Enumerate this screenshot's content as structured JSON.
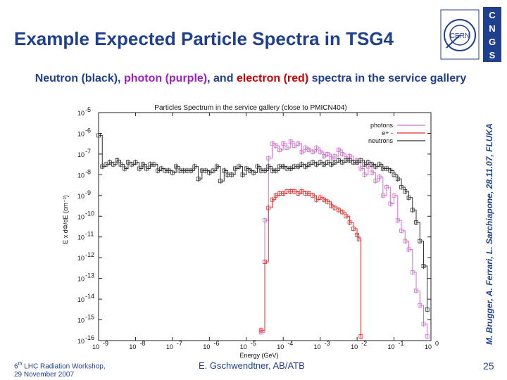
{
  "slide": {
    "title": "Example Expected Particle Spectra in TSG4",
    "subtitle_parts": {
      "p1": "Neutron (black), ",
      "p2": "photon (purple)",
      "p3": ", and ",
      "p4": "electron (red)",
      "p5": " spectra in the service gallery"
    },
    "credit": "M. Brugger, A. Ferrari, L. Sarchiapone, 28.11.07, FLUKA",
    "footer_workshop_prefix": "6",
    "footer_workshop_sup": "th",
    "footer_workshop_rest": " LHC Radiation Workshop,",
    "footer_date": "29 November 2007",
    "footer_author": "E. Gschwendtner, AB/ATB",
    "page_number": "25"
  },
  "logos": {
    "cern": "CERN",
    "cngs_letters": [
      "C",
      "N",
      "G",
      "S"
    ]
  },
  "chart_data": {
    "type": "line",
    "title": "Particles Spectrum in the service gallery (close to PMICN404)",
    "xlabel": "Energy (GeV)",
    "ylabel": "E x dΦ/dE  (cm⁻²)",
    "x_scale": "log",
    "y_scale": "log",
    "xlim": [
      1e-09,
      1
    ],
    "ylim": [
      1e-16,
      1e-05
    ],
    "x_ticks": [
      {
        "exp": -9,
        "label": "10",
        "sup": "-9"
      },
      {
        "exp": -8,
        "label": "10",
        "sup": "-8"
      },
      {
        "exp": -7,
        "label": "10",
        "sup": "-7"
      },
      {
        "exp": -6,
        "label": "10",
        "sup": "-6"
      },
      {
        "exp": -5,
        "label": "10",
        "sup": "-5"
      },
      {
        "exp": -4,
        "label": "10",
        "sup": "-4"
      },
      {
        "exp": -3,
        "label": "10",
        "sup": "-3"
      },
      {
        "exp": -2,
        "label": "10",
        "sup": "-2"
      },
      {
        "exp": -1,
        "label": "10",
        "sup": "-1"
      },
      {
        "exp": 0,
        "label": "10",
        "sup": "0"
      }
    ],
    "y_ticks": [
      {
        "exp": -5,
        "label": "10",
        "sup": "-5"
      },
      {
        "exp": -6,
        "label": "10",
        "sup": "-6"
      },
      {
        "exp": -7,
        "label": "10",
        "sup": "-7"
      },
      {
        "exp": -8,
        "label": "10",
        "sup": "-8"
      },
      {
        "exp": -9,
        "label": "10",
        "sup": "-9"
      },
      {
        "exp": -10,
        "label": "10",
        "sup": "-10"
      },
      {
        "exp": -11,
        "label": "10",
        "sup": "-11"
      },
      {
        "exp": -12,
        "label": "10",
        "sup": "-12"
      },
      {
        "exp": -13,
        "label": "10",
        "sup": "-13"
      },
      {
        "exp": -14,
        "label": "10",
        "sup": "-14"
      },
      {
        "exp": -15,
        "label": "10",
        "sup": "-15"
      },
      {
        "exp": -16,
        "label": "10",
        "sup": "-16"
      }
    ],
    "legend_position": "top-right",
    "series": [
      {
        "name": "photons",
        "legend": "photons",
        "color": "#d070d0",
        "points": [
          [
            -4.6,
            -15.6
          ],
          [
            -4.5,
            -10.2
          ],
          [
            -4.4,
            -7.2
          ],
          [
            -4.3,
            -6.5
          ],
          [
            -4.2,
            -6.6
          ],
          [
            -4.1,
            -6.8
          ],
          [
            -4.0,
            -6.5
          ],
          [
            -3.9,
            -6.7
          ],
          [
            -3.8,
            -6.4
          ],
          [
            -3.7,
            -6.6
          ],
          [
            -3.6,
            -6.5
          ],
          [
            -3.5,
            -6.9
          ],
          [
            -3.4,
            -6.7
          ],
          [
            -3.3,
            -6.8
          ],
          [
            -3.2,
            -6.9
          ],
          [
            -3.1,
            -6.7
          ],
          [
            -3.0,
            -6.9
          ],
          [
            -2.9,
            -7.1
          ],
          [
            -2.8,
            -7.0
          ],
          [
            -2.7,
            -7.2
          ],
          [
            -2.6,
            -7.1
          ],
          [
            -2.5,
            -6.8
          ],
          [
            -2.4,
            -7.0
          ],
          [
            -2.3,
            -7.2
          ],
          [
            -2.2,
            -7.1
          ],
          [
            -2.1,
            -7.4
          ],
          [
            -2.0,
            -7.3
          ],
          [
            -1.9,
            -7.7
          ],
          [
            -1.8,
            -8.0
          ],
          [
            -1.7,
            -7.6
          ],
          [
            -1.6,
            -7.9
          ],
          [
            -1.5,
            -8.3
          ],
          [
            -1.4,
            -8.1
          ],
          [
            -1.3,
            -9.0
          ],
          [
            -1.2,
            -8.6
          ],
          [
            -1.1,
            -9.4
          ],
          [
            -1.0,
            -9.0
          ],
          [
            -0.9,
            -10.2
          ],
          [
            -0.8,
            -10.7
          ],
          [
            -0.7,
            -11.2
          ],
          [
            -0.6,
            -11.6
          ],
          [
            -0.5,
            -12.7
          ],
          [
            -0.4,
            -13.6
          ],
          [
            -0.3,
            -14.3
          ],
          [
            -0.2,
            -15.2
          ],
          [
            -0.1,
            -15.8
          ]
        ]
      },
      {
        "name": "electrons",
        "legend": "e+ -",
        "color": "#e03030",
        "points": [
          [
            -4.6,
            -15.5
          ],
          [
            -4.5,
            -12.2
          ],
          [
            -4.4,
            -9.6
          ],
          [
            -4.3,
            -9.2
          ],
          [
            -4.2,
            -9.0
          ],
          [
            -4.1,
            -8.9
          ],
          [
            -4.0,
            -8.9
          ],
          [
            -3.9,
            -8.8
          ],
          [
            -3.8,
            -8.8
          ],
          [
            -3.7,
            -8.8
          ],
          [
            -3.6,
            -8.9
          ],
          [
            -3.5,
            -8.8
          ],
          [
            -3.4,
            -8.9
          ],
          [
            -3.3,
            -8.9
          ],
          [
            -3.2,
            -9.0
          ],
          [
            -3.1,
            -9.2
          ],
          [
            -3.0,
            -9.1
          ],
          [
            -2.9,
            -9.2
          ],
          [
            -2.8,
            -9.3
          ],
          [
            -2.7,
            -9.5
          ],
          [
            -2.6,
            -9.6
          ],
          [
            -2.5,
            -9.7
          ],
          [
            -2.4,
            -9.8
          ],
          [
            -2.3,
            -10.0
          ],
          [
            -2.2,
            -10.3
          ],
          [
            -2.1,
            -10.6
          ],
          [
            -2.0,
            -10.9
          ],
          [
            -1.95,
            -11.1
          ],
          [
            -1.9,
            -15.8
          ]
        ]
      },
      {
        "name": "neutrons",
        "legend": "neutrons",
        "color": "#303030",
        "points": [
          [
            -9.0,
            -6.1
          ],
          [
            -8.9,
            -7.6
          ],
          [
            -8.8,
            -7.5
          ],
          [
            -8.7,
            -7.4
          ],
          [
            -8.6,
            -7.5
          ],
          [
            -8.5,
            -7.3
          ],
          [
            -8.4,
            -7.5
          ],
          [
            -8.3,
            -7.7
          ],
          [
            -8.2,
            -7.4
          ],
          [
            -8.1,
            -7.5
          ],
          [
            -8.0,
            -7.4
          ],
          [
            -7.9,
            -7.7
          ],
          [
            -7.8,
            -7.5
          ],
          [
            -7.7,
            -7.7
          ],
          [
            -7.6,
            -7.5
          ],
          [
            -7.5,
            -7.5
          ],
          [
            -7.4,
            -7.8
          ],
          [
            -7.3,
            -7.7
          ],
          [
            -7.2,
            -7.8
          ],
          [
            -7.1,
            -7.8
          ],
          [
            -7.0,
            -7.9
          ],
          [
            -6.9,
            -7.6
          ],
          [
            -6.8,
            -7.8
          ],
          [
            -6.7,
            -7.8
          ],
          [
            -6.6,
            -7.8
          ],
          [
            -6.5,
            -7.8
          ],
          [
            -6.4,
            -7.6
          ],
          [
            -6.3,
            -8.2
          ],
          [
            -6.2,
            -7.8
          ],
          [
            -6.1,
            -7.8
          ],
          [
            -6.0,
            -7.9
          ],
          [
            -5.9,
            -7.8
          ],
          [
            -5.8,
            -7.6
          ],
          [
            -5.7,
            -8.3
          ],
          [
            -5.6,
            -7.8
          ],
          [
            -5.5,
            -8.0
          ],
          [
            -5.4,
            -8.0
          ],
          [
            -5.3,
            -7.7
          ],
          [
            -5.2,
            -7.6
          ],
          [
            -5.1,
            -8.0
          ],
          [
            -5.0,
            -7.7
          ],
          [
            -4.9,
            -7.8
          ],
          [
            -4.8,
            -7.9
          ],
          [
            -4.7,
            -7.6
          ],
          [
            -4.6,
            -7.8
          ],
          [
            -4.5,
            -7.8
          ],
          [
            -4.4,
            -7.6
          ],
          [
            -4.3,
            -7.8
          ],
          [
            -4.2,
            -7.8
          ],
          [
            -4.1,
            -7.6
          ],
          [
            -4.0,
            -7.6
          ],
          [
            -3.9,
            -7.7
          ],
          [
            -3.8,
            -7.7
          ],
          [
            -3.7,
            -7.6
          ],
          [
            -3.6,
            -7.6
          ],
          [
            -3.5,
            -7.5
          ],
          [
            -3.4,
            -7.6
          ],
          [
            -3.3,
            -7.5
          ],
          [
            -3.2,
            -7.4
          ],
          [
            -3.1,
            -7.5
          ],
          [
            -3.0,
            -7.4
          ],
          [
            -2.9,
            -7.5
          ],
          [
            -2.8,
            -7.4
          ],
          [
            -2.7,
            -7.5
          ],
          [
            -2.6,
            -7.4
          ],
          [
            -2.5,
            -7.3
          ],
          [
            -2.4,
            -7.4
          ],
          [
            -2.3,
            -7.3
          ],
          [
            -2.2,
            -7.3
          ],
          [
            -2.1,
            -7.4
          ],
          [
            -2.0,
            -7.4
          ],
          [
            -1.9,
            -7.3
          ],
          [
            -1.8,
            -7.5
          ],
          [
            -1.7,
            -7.4
          ],
          [
            -1.6,
            -7.5
          ],
          [
            -1.5,
            -7.6
          ],
          [
            -1.4,
            -7.5
          ],
          [
            -1.3,
            -7.7
          ],
          [
            -1.2,
            -7.7
          ],
          [
            -1.1,
            -7.8
          ],
          [
            -1.0,
            -8.0
          ],
          [
            -0.9,
            -8.2
          ],
          [
            -0.8,
            -8.6
          ],
          [
            -0.7,
            -8.8
          ],
          [
            -0.6,
            -9.1
          ],
          [
            -0.5,
            -9.7
          ],
          [
            -0.4,
            -10.3
          ],
          [
            -0.3,
            -11.2
          ],
          [
            -0.2,
            -12.4
          ],
          [
            -0.1,
            -14.5
          ]
        ]
      }
    ]
  }
}
